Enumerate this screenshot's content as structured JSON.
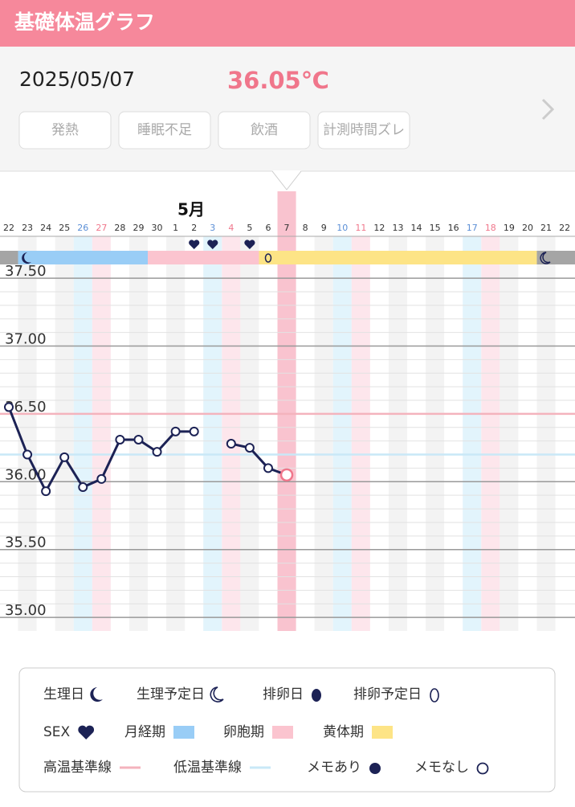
{
  "header": {
    "title": "基礎体温グラフ"
  },
  "date_panel": {
    "date": "2025/05/07",
    "temperature": "36.05℃",
    "buttons": [
      "発熱",
      "睡眠不足",
      "飲酒",
      "計測時間ズレ"
    ]
  },
  "chart_data": {
    "type": "line",
    "month_label": "5月",
    "categories": [
      "22",
      "23",
      "24",
      "25",
      "26",
      "27",
      "28",
      "29",
      "30",
      "1",
      "2",
      "3",
      "4",
      "5",
      "6",
      "7",
      "8",
      "9",
      "10",
      "11",
      "12",
      "13",
      "14",
      "15",
      "16",
      "17",
      "18",
      "19",
      "20",
      "21",
      "22"
    ],
    "series": [
      {
        "color": "#1c2255",
        "values": [
          36.55,
          36.2,
          35.93,
          36.18,
          35.96,
          36.02,
          36.31,
          36.31,
          36.22,
          36.37,
          36.37,
          null,
          36.28,
          36.25,
          36.1,
          36.05,
          null,
          null,
          null,
          null,
          null,
          null,
          null,
          null,
          null,
          null,
          null,
          null,
          null,
          null,
          null
        ]
      }
    ],
    "ylim": [
      34.9,
      37.6
    ],
    "yticks": [
      {
        "value": 35,
        "label": "35.00"
      },
      {
        "value": 35.5,
        "label": "35.50"
      },
      {
        "value": 36,
        "label": "36.00"
      },
      {
        "value": 36.5,
        "label": "36.50"
      },
      {
        "value": 37,
        "label": "37.00"
      },
      {
        "value": 37.5,
        "label": "37.50"
      }
    ],
    "grid": true,
    "reference_lines": [
      {
        "value": 36.5,
        "color": "#f4b3bd"
      },
      {
        "value": 36.2,
        "color": "#c9e8f7"
      }
    ]
  },
  "legend": {
    "items": [
      "生理日",
      "生理予定日",
      "排卵日",
      "排卵予定日",
      "SEX",
      "月経期",
      "卵胞期",
      "黄体期",
      "高温基準線",
      "低温基準線",
      "メモあり",
      "メモなし"
    ]
  }
}
